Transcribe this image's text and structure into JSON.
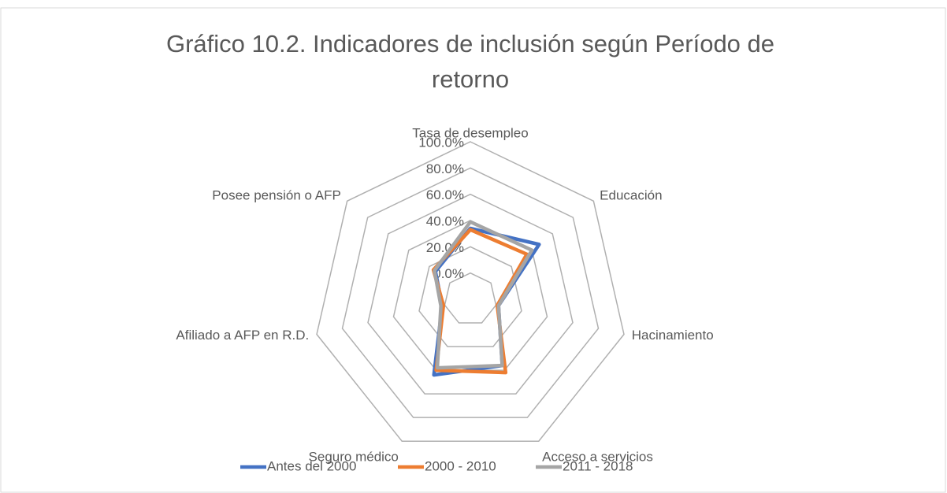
{
  "chart_data": {
    "type": "radar",
    "title": "Gráfico 10.2. Indicadores de inclusión según Período de retorno",
    "categories": [
      "Tasa de desempleo",
      "Educación",
      "Hacinamiento",
      "Acceso a servicios",
      "Seguro médico",
      "Afiliado a AFP en R.D.",
      "Posee pensión o AFP"
    ],
    "series": [
      {
        "name": "Antes del 2000",
        "color": "#4472c4",
        "values": [
          34,
          47,
          2,
          36,
          44,
          2,
          14
        ]
      },
      {
        "name": "2000 - 2010",
        "color": "#ed7d31",
        "values": [
          33,
          35,
          1,
          42,
          40,
          1,
          16
        ]
      },
      {
        "name": "2011 - 2018",
        "color": "#a5a5a5",
        "values": [
          39,
          40,
          2,
          36,
          38,
          3,
          15
        ]
      }
    ],
    "rlim": [
      -20,
      100
    ],
    "rticks": [
      {
        "value": 0,
        "label": "0.0%"
      },
      {
        "value": 20,
        "label": "20.0%"
      },
      {
        "value": 40,
        "label": "40.0%"
      },
      {
        "value": 60,
        "label": "60.0%"
      },
      {
        "value": 80,
        "label": "80.0%"
      },
      {
        "value": 100,
        "label": "100.0%"
      }
    ],
    "legend": "bottom"
  }
}
